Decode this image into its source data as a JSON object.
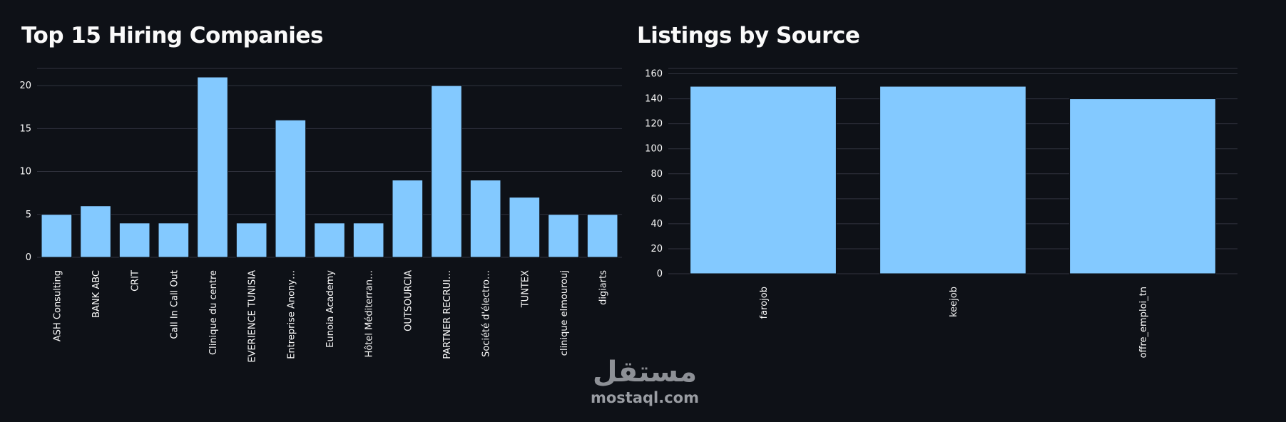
{
  "chart_data": [
    {
      "type": "bar",
      "title": "Top 15 Hiring Companies",
      "xlabel": "",
      "ylabel": "",
      "ylim": [
        0,
        22
      ],
      "yticks": [
        0,
        5,
        10,
        15,
        20
      ],
      "grid": true,
      "categories": [
        "ASH Consulting",
        "BANK ABC",
        "CRIT",
        "Call In Call Out",
        "Clinique du centre",
        "EVERIENCE TUNISIA",
        "Entreprise Anony…",
        "Eunoia Academy",
        "Hôtel Méditerran…",
        "OUTSOURCIA",
        "PARTNER RECRUI…",
        "Société d'électro…",
        "TUNTEX",
        "clinique elmourouj",
        "digiarts"
      ],
      "values": [
        5,
        6,
        4,
        4,
        21,
        4,
        16,
        4,
        4,
        9,
        20,
        9,
        7,
        5,
        5
      ],
      "color": "#83c9ff"
    },
    {
      "type": "bar",
      "title": "Listings by Source",
      "xlabel": "",
      "ylabel": "",
      "ylim": [
        0,
        162
      ],
      "yticks": [
        0,
        20,
        40,
        60,
        80,
        100,
        120,
        140,
        160
      ],
      "grid": true,
      "categories": [
        "farojob",
        "keejob",
        "offre_emploi_tn"
      ],
      "values": [
        150,
        150,
        140
      ],
      "color": "#83c9ff"
    }
  ],
  "watermark": {
    "logo": "مستقل",
    "text": "mostaql.com"
  }
}
